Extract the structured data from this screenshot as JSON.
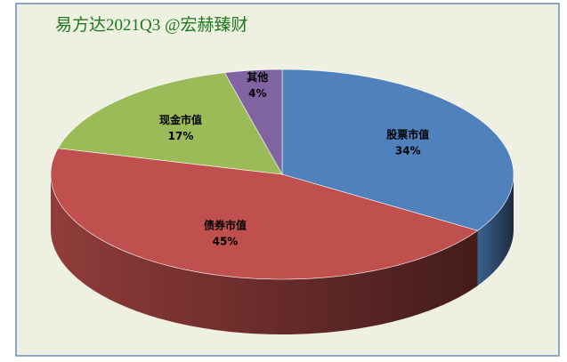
{
  "chart_data": {
    "type": "pie3d",
    "title": "易方达2021Q3  @宏赫臻财",
    "categories": [
      "股票市值",
      "债券市值",
      "现金市值",
      "其他"
    ],
    "values": [
      34,
      45,
      17,
      4
    ],
    "value_labels": [
      "34%",
      "45%",
      "17%",
      "4%"
    ],
    "colors": [
      "#4f81bd",
      "#c0504d",
      "#9bbb59",
      "#8064a2"
    ]
  }
}
